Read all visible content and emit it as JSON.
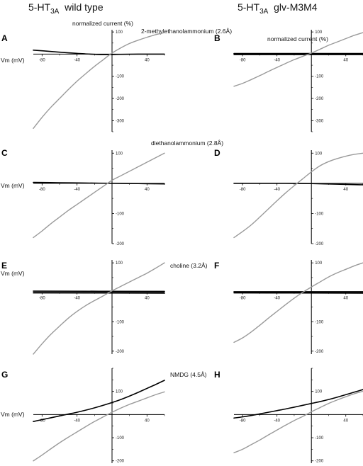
{
  "headers": {
    "left": {
      "prefix": "5-HT",
      "sub": "3A",
      "suffix": "wild type"
    },
    "right": {
      "prefix": "5-HT",
      "sub": "3A",
      "suffix": "glv-M3M4"
    }
  },
  "labels": {
    "ylabel_left": "normalized current (%)",
    "ylabel_right": "normalized current (%)",
    "xlabel": "Vm (mV)",
    "ions": [
      "2-methylethanolammonium (2.6Å)",
      "diethanolammonium (2.8Å)",
      "choline (3.2Å)",
      "NMDG (4.5Å)"
    ]
  },
  "colors": {
    "series_black": "#000000",
    "series_gray": "#9a9a9a",
    "axis": "#000000"
  },
  "chart_data": [
    {
      "panel": "A",
      "type": "line",
      "xlim": [
        -90,
        60
      ],
      "ylim": [
        -350,
        110
      ],
      "xticks": [
        -80,
        -40,
        40
      ],
      "yticks": [
        100,
        -100,
        -200,
        -300
      ],
      "series": [
        {
          "color": "black",
          "x": [
            -90,
            -70,
            -50,
            -30,
            -10,
            10,
            30,
            50,
            60
          ],
          "y": [
            18,
            12,
            6,
            1,
            -2,
            -1,
            0,
            0,
            0
          ]
        },
        {
          "color": "gray",
          "x": [
            -90,
            -80,
            -70,
            -60,
            -50,
            -40,
            -30,
            -20,
            -10,
            0,
            10,
            20,
            30,
            40,
            50,
            60
          ],
          "y": [
            -335,
            -285,
            -240,
            -200,
            -160,
            -122,
            -88,
            -55,
            -25,
            5,
            28,
            48,
            63,
            76,
            88,
            97
          ]
        }
      ]
    },
    {
      "panel": "B",
      "type": "line",
      "xlim": [
        -90,
        60
      ],
      "ylim": [
        -350,
        110
      ],
      "xticks": [
        -80,
        -40,
        40
      ],
      "yticks": [
        100,
        -100,
        -200,
        -300
      ],
      "series": [
        {
          "color": "black",
          "x": [
            -90,
            60
          ],
          "y": [
            3,
            3
          ]
        },
        {
          "color": "black",
          "x": [
            -90,
            60
          ],
          "y": [
            -2,
            -2
          ]
        },
        {
          "color": "gray",
          "x": [
            -90,
            -80,
            -70,
            -60,
            -50,
            -40,
            -30,
            -20,
            -10,
            0,
            10,
            20,
            30,
            40,
            50,
            60
          ],
          "y": [
            -145,
            -132,
            -115,
            -97,
            -78,
            -60,
            -42,
            -25,
            -10,
            5,
            22,
            40,
            55,
            70,
            85,
            97
          ]
        }
      ]
    },
    {
      "panel": "C",
      "type": "line",
      "xlim": [
        -90,
        60
      ],
      "ylim": [
        -200,
        110
      ],
      "xticks": [
        -80,
        -40,
        40
      ],
      "yticks": [
        100,
        -100,
        -200
      ],
      "series": [
        {
          "color": "black",
          "x": [
            -90,
            -60,
            -30,
            0,
            30,
            60
          ],
          "y": [
            3,
            2,
            1,
            0,
            -1,
            -2
          ]
        },
        {
          "color": "gray",
          "x": [
            -90,
            -80,
            -70,
            -60,
            -50,
            -40,
            -30,
            -20,
            -10,
            0,
            10,
            20,
            30,
            40,
            50,
            60
          ],
          "y": [
            -180,
            -158,
            -134,
            -112,
            -90,
            -70,
            -50,
            -30,
            -10,
            10,
            25,
            40,
            55,
            70,
            85,
            100
          ]
        }
      ]
    },
    {
      "panel": "D",
      "type": "line",
      "xlim": [
        -90,
        60
      ],
      "ylim": [
        -200,
        110
      ],
      "xticks": [
        -80,
        -40,
        40
      ],
      "yticks": [
        100,
        -100,
        -200
      ],
      "series": [
        {
          "color": "black",
          "x": [
            -90,
            -60,
            -30,
            0,
            30,
            60
          ],
          "y": [
            0,
            0,
            0,
            -1,
            -3,
            -5
          ]
        },
        {
          "color": "gray",
          "x": [
            -90,
            -80,
            -70,
            -60,
            -50,
            -40,
            -30,
            -20,
            -10,
            0,
            10,
            20,
            30,
            40,
            50,
            60
          ],
          "y": [
            -180,
            -160,
            -138,
            -112,
            -85,
            -58,
            -32,
            -8,
            15,
            38,
            58,
            72,
            82,
            90,
            96,
            100
          ]
        }
      ]
    },
    {
      "panel": "E",
      "type": "line",
      "xlim": [
        -90,
        60
      ],
      "ylim": [
        -210,
        110
      ],
      "xticks": [
        -80,
        -40,
        40
      ],
      "yticks": [
        100,
        -100,
        -200
      ],
      "series": [
        {
          "color": "black",
          "x": [
            -90,
            60
          ],
          "y": [
            4,
            3
          ]
        },
        {
          "color": "black",
          "x": [
            -90,
            60
          ],
          "y": [
            -2,
            -3
          ]
        },
        {
          "color": "gray",
          "x": [
            -90,
            -80,
            -70,
            -60,
            -50,
            -40,
            -30,
            -20,
            -10,
            0,
            10,
            20,
            30,
            40,
            50,
            60
          ],
          "y": [
            -210,
            -175,
            -143,
            -115,
            -88,
            -65,
            -45,
            -28,
            -12,
            5,
            20,
            35,
            50,
            65,
            82,
            100
          ]
        }
      ]
    },
    {
      "panel": "F",
      "type": "line",
      "xlim": [
        -90,
        60
      ],
      "ylim": [
        -210,
        110
      ],
      "xticks": [
        -80,
        -40,
        40
      ],
      "yticks": [
        100,
        -100,
        -200
      ],
      "series": [
        {
          "color": "black",
          "x": [
            -90,
            60
          ],
          "y": [
            2,
            2
          ]
        },
        {
          "color": "black",
          "x": [
            -90,
            60
          ],
          "y": [
            -2,
            -3
          ]
        },
        {
          "color": "gray",
          "x": [
            -90,
            -80,
            -70,
            -60,
            -50,
            -40,
            -30,
            -20,
            -10,
            0,
            10,
            20,
            30,
            40,
            50,
            60
          ],
          "y": [
            -170,
            -155,
            -135,
            -112,
            -88,
            -65,
            -42,
            -20,
            0,
            18,
            35,
            52,
            66,
            78,
            90,
            100
          ]
        }
      ]
    },
    {
      "panel": "G",
      "type": "line",
      "xlim": [
        -90,
        60
      ],
      "ylim": [
        -210,
        200
      ],
      "xticks": [
        -80,
        -40,
        40
      ],
      "yticks": [
        100,
        -100,
        -200
      ],
      "series": [
        {
          "color": "black",
          "x": [
            -90,
            -80,
            -70,
            -60,
            -50,
            -40,
            -30,
            -20,
            -10,
            0,
            10,
            20,
            30,
            40,
            50,
            60
          ],
          "y": [
            -30,
            -22,
            -14,
            -6,
            2,
            10,
            19,
            29,
            40,
            52,
            65,
            80,
            96,
            113,
            130,
            148
          ]
        },
        {
          "color": "gray",
          "x": [
            -90,
            -80,
            -70,
            -60,
            -50,
            -40,
            -30,
            -20,
            -10,
            0,
            10,
            20,
            30,
            40,
            50,
            60
          ],
          "y": [
            -200,
            -175,
            -148,
            -122,
            -98,
            -75,
            -52,
            -30,
            -10,
            10,
            28,
            44,
            58,
            72,
            86,
            98
          ]
        }
      ]
    },
    {
      "panel": "H",
      "type": "line",
      "xlim": [
        -90,
        60
      ],
      "ylim": [
        -210,
        200
      ],
      "xticks": [
        -80,
        -40,
        40
      ],
      "yticks": [
        100,
        -100,
        -200
      ],
      "series": [
        {
          "color": "black",
          "x": [
            -90,
            -80,
            -70,
            -60,
            -50,
            -40,
            -30,
            -20,
            -10,
            0,
            10,
            20,
            30,
            40,
            50,
            60
          ],
          "y": [
            -15,
            -10,
            -4,
            3,
            10,
            17,
            24,
            32,
            40,
            48,
            56,
            65,
            75,
            86,
            97,
            108
          ]
        },
        {
          "color": "gray",
          "x": [
            -90,
            -80,
            -70,
            -60,
            -50,
            -40,
            -30,
            -20,
            -10,
            0,
            10,
            20,
            30,
            40,
            50,
            60
          ],
          "y": [
            -165,
            -150,
            -130,
            -110,
            -88,
            -67,
            -46,
            -26,
            -8,
            12,
            30,
            48,
            63,
            77,
            90,
            101
          ]
        }
      ]
    }
  ]
}
